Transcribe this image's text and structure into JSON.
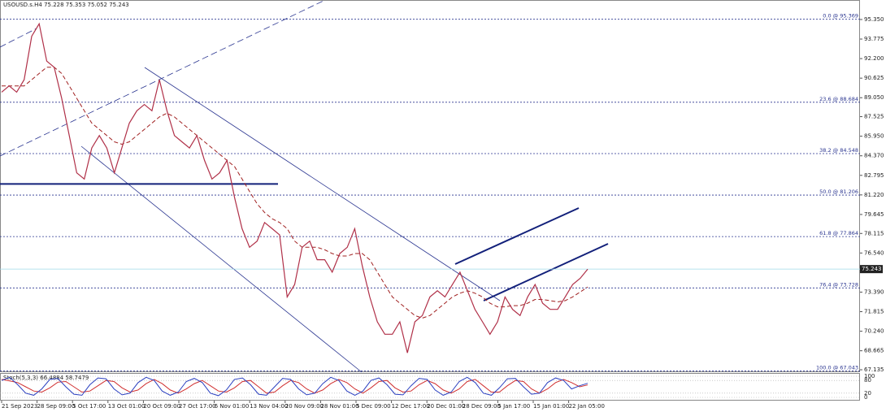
{
  "chart_data": {
    "type": "line",
    "title": "USOUSD.s.H4  75.228 75.353 75.052 75.243",
    "ylim": [
      66.94,
      96.92
    ],
    "yticks": [
      {
        "value": 95.35,
        "label": "95.350"
      },
      {
        "value": 93.775,
        "label": "93.775"
      },
      {
        "value": 92.2,
        "label": "92.200"
      },
      {
        "value": 90.625,
        "label": "90.625"
      },
      {
        "value": 89.05,
        "label": "89.050"
      },
      {
        "value": 87.525,
        "label": "87.525"
      },
      {
        "value": 85.95,
        "label": "85.950"
      },
      {
        "value": 84.37,
        "label": "84.370"
      },
      {
        "value": 82.795,
        "label": "82.795"
      },
      {
        "value": 81.22,
        "label": "81.220"
      },
      {
        "value": 79.645,
        "label": "79.645"
      },
      {
        "value": 78.115,
        "label": "78.115"
      },
      {
        "value": 76.54,
        "label": "76.540"
      },
      {
        "value": 73.39,
        "label": "73.390"
      },
      {
        "value": 71.815,
        "label": "71.815"
      },
      {
        "value": 70.24,
        "label": "70.240"
      },
      {
        "value": 68.665,
        "label": "68.665"
      },
      {
        "value": 67.135,
        "label": "67.135"
      }
    ],
    "x_tick_labels": [
      "21 Sep 2023",
      "28 Sep 09:00",
      "5 Oct 17:00",
      "13 Oct 01:00",
      "20 Oct 09:00",
      "27 Oct 17:00",
      "6 Nov 01:00",
      "13 Nov 04:00",
      "20 Nov 09:00",
      "28 Nov 01:00",
      "5 Dec 09:00",
      "12 Dec 17:00",
      "20 Dec 01:00",
      "28 Dec 09:00",
      "5 Jan 17:00",
      "15 Jan 01:00",
      "22 Jan 05:00"
    ],
    "price": {
      "color": "#b03048",
      "values": [
        89.5,
        90,
        89.5,
        90.5,
        94,
        95,
        92,
        91.5,
        89,
        86,
        83,
        82.5,
        85,
        86,
        85,
        83,
        85,
        87,
        88,
        88.5,
        88,
        90.5,
        88,
        86,
        85.5,
        85,
        86,
        84,
        82.5,
        83,
        84,
        81,
        78.5,
        77,
        77.5,
        79,
        78.5,
        78,
        73,
        74,
        77,
        77.5,
        76,
        76,
        75,
        76.5,
        77,
        78.5,
        75.5,
        73,
        71,
        70,
        70,
        71,
        68.5,
        71,
        71.5,
        73,
        73.5,
        73,
        74,
        75,
        73.5,
        72,
        71,
        70,
        71,
        73,
        72,
        71.5,
        73,
        74,
        72.5,
        72,
        72,
        73,
        74,
        74.5,
        75.243
      ]
    },
    "moving_average": {
      "color": "#a02020",
      "values": [
        90,
        90,
        90,
        90,
        90.5,
        91,
        91.5,
        91.5,
        91,
        90,
        89,
        88,
        87,
        86.5,
        86,
        85.5,
        85.3,
        85.5,
        86,
        86.5,
        87,
        87.5,
        87.8,
        87.5,
        87,
        86.5,
        86,
        85.5,
        85,
        84.5,
        84,
        83.5,
        82.5,
        81.5,
        80.5,
        79.8,
        79.3,
        79,
        78.5,
        77.5,
        77,
        77,
        77,
        76.8,
        76.5,
        76.3,
        76.3,
        76.5,
        76.5,
        76,
        75,
        74,
        73,
        72.5,
        72,
        71.5,
        71.3,
        71.5,
        72,
        72.5,
        73,
        73.3,
        73.5,
        73.3,
        73,
        72.5,
        72.2,
        72.2,
        72.3,
        72.3,
        72.5,
        72.8,
        72.8,
        72.7,
        72.6,
        72.7,
        73,
        73.4,
        73.8
      ]
    },
    "levels": [
      {
        "value": 95.369,
        "label": "0.0 @ 95.369"
      },
      {
        "value": 88.684,
        "label": "23.6 @ 88.684"
      },
      {
        "value": 84.548,
        "label": "38.2 @ 84.548"
      },
      {
        "value": 81.206,
        "label": "50.0 @ 81.206"
      },
      {
        "value": 77.864,
        "label": "61.8 @ 77.864"
      },
      {
        "value": 73.728,
        "label": "76.4 @ 73.728"
      },
      {
        "value": 67.043,
        "label": "100.0 @ 67.043"
      }
    ],
    "horizontal_line": 82.1,
    "last_price": {
      "value": 75.243,
      "label": "75.243"
    },
    "stochastic": {
      "label": "Stoch(5,3,3) 66.4884 58.7479",
      "ylim": [
        0,
        100
      ],
      "yticks": [
        100,
        80,
        20,
        0
      ],
      "k": {
        "color": "#2a3fc0",
        "values": [
          80,
          95,
          60,
          20,
          10,
          40,
          85,
          90,
          50,
          15,
          10,
          60,
          92,
          88,
          40,
          12,
          20,
          70,
          95,
          80,
          30,
          10,
          25,
          75,
          90,
          70,
          20,
          8,
          35,
          85,
          92,
          60,
          15,
          10,
          50,
          90,
          85,
          40,
          12,
          20,
          65,
          95,
          80,
          30,
          10,
          30,
          80,
          92,
          60,
          15,
          12,
          55,
          90,
          85,
          35,
          10,
          25,
          75,
          95,
          70,
          20,
          10,
          45,
          88,
          90,
          50,
          15,
          20,
          70,
          92,
          80,
          40,
          55,
          66.4884
        ]
      },
      "d": {
        "color": "#d03030",
        "values": [
          85,
          78,
          70,
          50,
          30,
          25,
          45,
          72,
          75,
          50,
          25,
          30,
          55,
          80,
          75,
          45,
          25,
          35,
          65,
          85,
          65,
          35,
          20,
          40,
          65,
          80,
          55,
          30,
          25,
          45,
          75,
          80,
          50,
          20,
          25,
          55,
          80,
          70,
          40,
          20,
          35,
          65,
          85,
          70,
          40,
          20,
          45,
          75,
          80,
          45,
          25,
          30,
          60,
          80,
          65,
          35,
          20,
          40,
          75,
          85,
          55,
          25,
          25,
          55,
          80,
          75,
          40,
          20,
          40,
          70,
          85,
          70,
          50,
          58.7479
        ]
      }
    }
  }
}
